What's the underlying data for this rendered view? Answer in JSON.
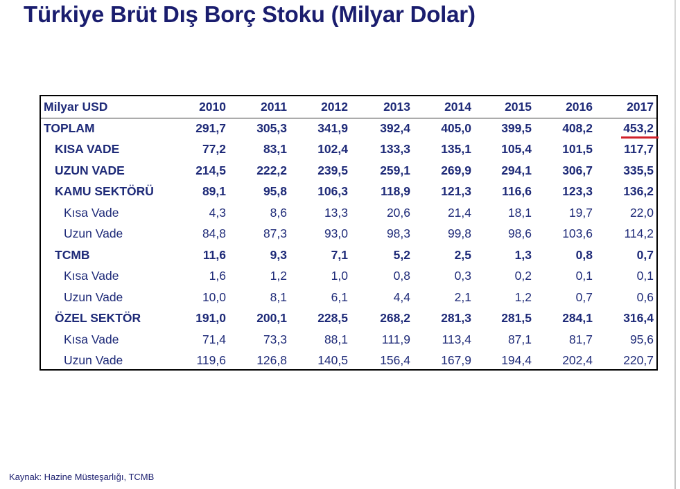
{
  "title": "Türkiye Brüt Dış Borç Stoku (Milyar Dolar)",
  "source": "Kaynak: Hazine Müsteşarlığı, TCMB",
  "chart_data": {
    "type": "table",
    "columns": [
      "Milyar USD",
      "2010",
      "2011",
      "2012",
      "2013",
      "2014",
      "2015",
      "2016",
      "2017"
    ],
    "rows": [
      {
        "label": "TOPLAM",
        "level": 0,
        "bold": true,
        "values": [
          "291,7",
          "305,3",
          "341,9",
          "392,4",
          "405,0",
          "399,5",
          "408,2",
          "453,2"
        ]
      },
      {
        "label": "KISA VADE",
        "level": 1,
        "bold": true,
        "values": [
          "77,2",
          "83,1",
          "102,4",
          "133,3",
          "135,1",
          "105,4",
          "101,5",
          "117,7"
        ]
      },
      {
        "label": "UZUN VADE",
        "level": 1,
        "bold": true,
        "values": [
          "214,5",
          "222,2",
          "239,5",
          "259,1",
          "269,9",
          "294,1",
          "306,7",
          "335,5"
        ]
      },
      {
        "label": "KAMU SEKTÖRÜ",
        "level": 1,
        "bold": true,
        "values": [
          "89,1",
          "95,8",
          "106,3",
          "118,9",
          "121,3",
          "116,6",
          "123,3",
          "136,2"
        ]
      },
      {
        "label": "Kısa Vade",
        "level": 2,
        "bold": false,
        "values": [
          "4,3",
          "8,6",
          "13,3",
          "20,6",
          "21,4",
          "18,1",
          "19,7",
          "22,0"
        ]
      },
      {
        "label": "Uzun Vade",
        "level": 2,
        "bold": false,
        "values": [
          "84,8",
          "87,3",
          "93,0",
          "98,3",
          "99,8",
          "98,6",
          "103,6",
          "114,2"
        ]
      },
      {
        "label": "TCMB",
        "level": 1,
        "bold": true,
        "values": [
          "11,6",
          "9,3",
          "7,1",
          "5,2",
          "2,5",
          "1,3",
          "0,8",
          "0,7"
        ]
      },
      {
        "label": "Kısa Vade",
        "level": 2,
        "bold": false,
        "values": [
          "1,6",
          "1,2",
          "1,0",
          "0,8",
          "0,3",
          "0,2",
          "0,1",
          "0,1"
        ]
      },
      {
        "label": "Uzun Vade",
        "level": 2,
        "bold": false,
        "values": [
          "10,0",
          "8,1",
          "6,1",
          "4,4",
          "2,1",
          "1,2",
          "0,7",
          "0,6"
        ]
      },
      {
        "label": "ÖZEL SEKTÖR",
        "level": 1,
        "bold": true,
        "values": [
          "191,0",
          "200,1",
          "228,5",
          "268,2",
          "281,3",
          "281,5",
          "284,1",
          "316,4"
        ]
      },
      {
        "label": "Kısa Vade",
        "level": 2,
        "bold": false,
        "values": [
          "71,4",
          "73,3",
          "88,1",
          "111,9",
          "113,4",
          "87,1",
          "81,7",
          "95,6"
        ]
      },
      {
        "label": "Uzun Vade",
        "level": 2,
        "bold": false,
        "values": [
          "119,6",
          "126,8",
          "140,5",
          "156,4",
          "167,9",
          "194,4",
          "202,4",
          "220,7"
        ]
      }
    ],
    "highlight": {
      "row": 0,
      "col": 7,
      "style": "red-underline"
    }
  },
  "colors": {
    "text": "#1e2a78",
    "title": "#1a1d6e",
    "highlight": "#d0202a"
  }
}
